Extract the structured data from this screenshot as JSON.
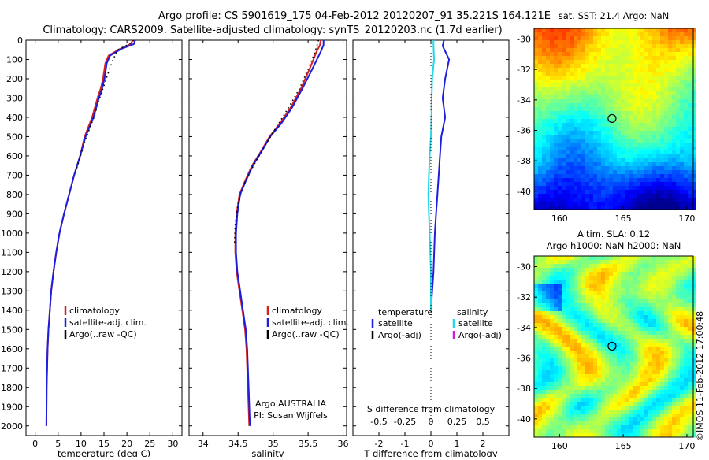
{
  "header": {
    "title_line1": "Argo profile: CS 5901619_175 04-Feb-2012 20120207_91 35.221S 164.121E",
    "title_line2": "Climatology: CARS2009. Satellite-adjusted climatology: synTS_20120203.nc (1.7d earlier)"
  },
  "colors": {
    "climatology": "#d42020",
    "satellite": "#1e1ee0",
    "argo": "#000000",
    "salinity_satellite": "#20d8e8",
    "salinity_argo": "#d020d0"
  },
  "chart_data": [
    {
      "id": "temperature",
      "type": "line",
      "xlabel": "temperature (deg C)",
      "xlim": [
        -2,
        32
      ],
      "xticks": [
        0,
        5,
        10,
        15,
        20,
        25,
        30
      ],
      "ylim": [
        0,
        2050
      ],
      "yticks": [
        0,
        100,
        200,
        300,
        400,
        500,
        600,
        700,
        800,
        900,
        1000,
        1100,
        1200,
        1300,
        1400,
        1500,
        1600,
        1700,
        1800,
        1900,
        2000
      ],
      "legend": [
        "climatology",
        "satellite-adj. clim.",
        "Argo(..raw -QC)"
      ],
      "series": [
        {
          "name": "climatology",
          "color_key": "climatology",
          "style": "solid",
          "x": [
            21.3,
            20.8,
            18.5,
            16.0,
            15.3,
            14.8,
            14.3,
            13.6,
            12.4,
            10.8,
            9.8,
            8.5,
            7.4,
            6.3,
            5.3,
            4.6,
            4.0,
            3.5,
            3.2,
            2.9,
            2.7,
            2.6,
            2.5,
            2.45
          ],
          "y": [
            0,
            20,
            45,
            80,
            120,
            200,
            250,
            300,
            400,
            500,
            600,
            700,
            800,
            900,
            1000,
            1100,
            1200,
            1300,
            1400,
            1500,
            1600,
            1700,
            1800,
            2000
          ]
        },
        {
          "name": "satellite-adj. clim.",
          "color_key": "satellite",
          "style": "solid",
          "x": [
            21.8,
            21.5,
            18.8,
            16.3,
            15.6,
            15.1,
            14.6,
            13.9,
            12.7,
            11.0,
            9.8,
            8.5,
            7.4,
            6.3,
            5.3,
            4.6,
            4.0,
            3.5,
            3.2,
            2.9,
            2.7,
            2.6,
            2.5,
            2.45
          ],
          "y": [
            0,
            20,
            45,
            80,
            120,
            200,
            250,
            300,
            400,
            500,
            600,
            700,
            800,
            900,
            1000,
            1100,
            1200,
            1300,
            1400,
            1500,
            1600,
            1700,
            1800,
            2000
          ]
        },
        {
          "name": "Argo(..raw -QC)",
          "color_key": "argo",
          "style": "dotted",
          "x": [
            21.5,
            20.5,
            18.0,
            17.0,
            16.2,
            15.5,
            14.8,
            14.1,
            12.8,
            11.2,
            9.9,
            8.6
          ],
          "y": [
            0,
            20,
            50,
            100,
            150,
            200,
            250,
            300,
            400,
            500,
            600,
            700
          ]
        }
      ]
    },
    {
      "id": "salinity",
      "type": "line",
      "xlabel": "salinity",
      "xlim": [
        33.8,
        36.05
      ],
      "xticks": [
        34,
        34.5,
        35,
        35.5,
        36
      ],
      "xticklabels": [
        "34",
        "34.5",
        "35",
        "35.5",
        "36"
      ],
      "ylim": [
        0,
        2050
      ],
      "legend": [
        "climatology",
        "satellite-adj. clim.",
        "Argo(..raw -QC)"
      ],
      "annotation": [
        "Argo AUSTRALIA",
        "PI: Susan Wijffels"
      ],
      "series": [
        {
          "name": "climatology",
          "color_key": "climatology",
          "style": "solid",
          "x": [
            35.68,
            35.67,
            35.62,
            35.52,
            35.4,
            35.25,
            35.1,
            34.95,
            34.82,
            34.7,
            34.6,
            34.52,
            34.48,
            34.46,
            34.46,
            34.48,
            34.52,
            34.56,
            34.6,
            34.62,
            34.64,
            34.66
          ],
          "y": [
            0,
            25,
            60,
            150,
            250,
            350,
            430,
            500,
            580,
            650,
            730,
            800,
            900,
            1000,
            1100,
            1200,
            1300,
            1400,
            1500,
            1600,
            1800,
            2000
          ]
        },
        {
          "name": "satellite-adj. clim.",
          "color_key": "satellite",
          "style": "solid",
          "x": [
            35.72,
            35.72,
            35.68,
            35.56,
            35.42,
            35.27,
            35.12,
            34.96,
            34.83,
            34.71,
            34.61,
            34.53,
            34.49,
            34.47,
            34.47,
            34.49,
            34.53,
            34.57,
            34.61,
            34.63,
            34.65,
            34.67
          ],
          "y": [
            0,
            25,
            60,
            150,
            250,
            350,
            430,
            500,
            580,
            650,
            730,
            800,
            900,
            1000,
            1100,
            1200,
            1300,
            1400,
            1500,
            1600,
            1800,
            2000
          ]
        },
        {
          "name": "Argo(..raw -QC)",
          "color_key": "argo",
          "style": "dotted",
          "x": [
            35.65,
            35.6,
            35.5,
            35.38,
            35.22,
            35.05,
            34.88,
            34.72,
            34.58,
            34.5,
            34.46,
            34.45
          ],
          "y": [
            0,
            60,
            150,
            250,
            350,
            450,
            550,
            650,
            750,
            850,
            950,
            1050
          ]
        }
      ]
    },
    {
      "id": "difference",
      "type": "line",
      "xlabel": "T difference from climatology",
      "xlim": [
        -3,
        3
      ],
      "xticks": [
        -2,
        -1,
        0,
        1,
        2
      ],
      "top_axis_label": "S difference from climatology",
      "top_ticklabels": [
        "-0.5",
        "-0.25",
        "0",
        "0.25",
        "0.5"
      ],
      "ylim": [
        0,
        2050
      ],
      "legend": {
        "temperature_title": "temperature",
        "temperature_items": [
          "satellite",
          "Argo(-adj)"
        ],
        "salinity_title": "salinity",
        "salinity_items": [
          "satellite",
          "Argo(-adj)"
        ]
      },
      "series": [
        {
          "name": "T satellite",
          "color_key": "satellite",
          "style": "solid",
          "x": [
            0.5,
            0.45,
            0.7,
            0.55,
            0.45,
            0.55,
            0.4,
            0.35,
            0.3,
            0.25,
            0.2,
            0.15,
            0.1,
            0.0
          ],
          "y": [
            0,
            30,
            100,
            200,
            300,
            400,
            500,
            600,
            700,
            800,
            900,
            1000,
            1200,
            1400
          ]
        },
        {
          "name": "S satellite",
          "color_key": "salinity_satellite",
          "style": "solid",
          "x": [
            0.1,
            0.1,
            0.12,
            0.05,
            0.03,
            0.02,
            0.0,
            -0.05,
            -0.08,
            -0.1,
            -0.08,
            -0.05,
            0.0,
            0.0
          ],
          "y": [
            0,
            30,
            100,
            200,
            300,
            400,
            500,
            600,
            700,
            800,
            900,
            1000,
            1200,
            1400
          ]
        }
      ]
    },
    {
      "id": "sst_map",
      "type": "heatmap",
      "title": "sat. SST: 21.4  Argo: NaN",
      "xticks": [
        160,
        165,
        170
      ],
      "yticks": [
        -30,
        -32,
        -34,
        -36,
        -38,
        -40
      ],
      "xlim": [
        158,
        170.5
      ],
      "ylim": [
        -41.2,
        -29.3
      ],
      "marker": {
        "lon": 164.121,
        "lat": -35.221
      }
    },
    {
      "id": "sla_map",
      "type": "heatmap",
      "title_line1": "Altim. SLA: 0.12",
      "title_line2": "Argo h1000: NaN  h2000: NaN",
      "xticks": [
        160,
        165,
        170
      ],
      "yticks": [
        -30,
        -32,
        -34,
        -36,
        -38,
        -40
      ],
      "xlim": [
        158,
        170.5
      ],
      "ylim": [
        -41.2,
        -29.3
      ],
      "marker": {
        "lon": 164.121,
        "lat": -35.221
      }
    }
  ],
  "footer": {
    "credit": "©IMOS 11-Feb-2012 17:00:48"
  }
}
